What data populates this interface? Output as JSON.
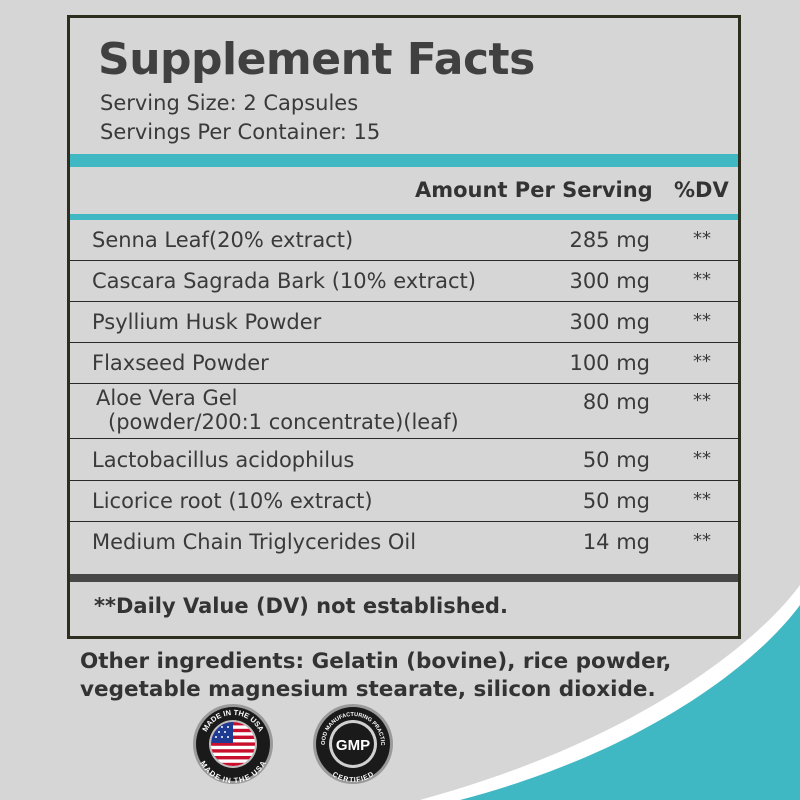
{
  "panel": {
    "title": "Supplement Facts",
    "serving_size": "Serving Size: 2 Capsules",
    "servings_per_container": "Servings Per Container: 15",
    "col_amount": "Amount Per Serving",
    "col_dv": "%DV",
    "rows": [
      {
        "name": "Senna Leaf(20% extract)",
        "amount": "285 mg",
        "dv": "**"
      },
      {
        "name": "Cascara Sagrada Bark (10% extract)",
        "amount": "300 mg",
        "dv": "**"
      },
      {
        "name": "Psyllium Husk Powder",
        "amount": "300 mg",
        "dv": "**"
      },
      {
        "name": "Flaxseed Powder",
        "amount": "100 mg",
        "dv": "**"
      },
      {
        "name": "Aloe Vera Gel",
        "name_line2": "(powder/200:1 concentrate)(leaf)",
        "amount": "80 mg",
        "dv": "**"
      },
      {
        "name": "Lactobacillus acidophilus",
        "amount": "50 mg",
        "dv": "**"
      },
      {
        "name": "Licorice root (10% extract)",
        "amount": "50 mg",
        "dv": "**"
      },
      {
        "name": "Medium Chain Triglycerides Oil",
        "amount": "14 mg",
        "dv": "**"
      }
    ],
    "footnote": "**Daily Value (DV) not established."
  },
  "other_ingredients": "Other ingredients: Gelatin (bovine), rice powder, vegetable magnesium stearate, silicon dioxide.",
  "badges": {
    "usa": {
      "top_text": "MADE IN THE USA",
      "bottom_text": "MADE IN THE USA"
    },
    "gmp": {
      "center_text": "GMP",
      "top_text": "GOOD MANUFACTURING PRACTICE",
      "bottom_text": "CERTIFIED"
    }
  },
  "colors": {
    "accent": "#3fb8c4",
    "background": "#d6d6d6",
    "text": "#3a3a3a",
    "border": "#2e2e1e"
  }
}
